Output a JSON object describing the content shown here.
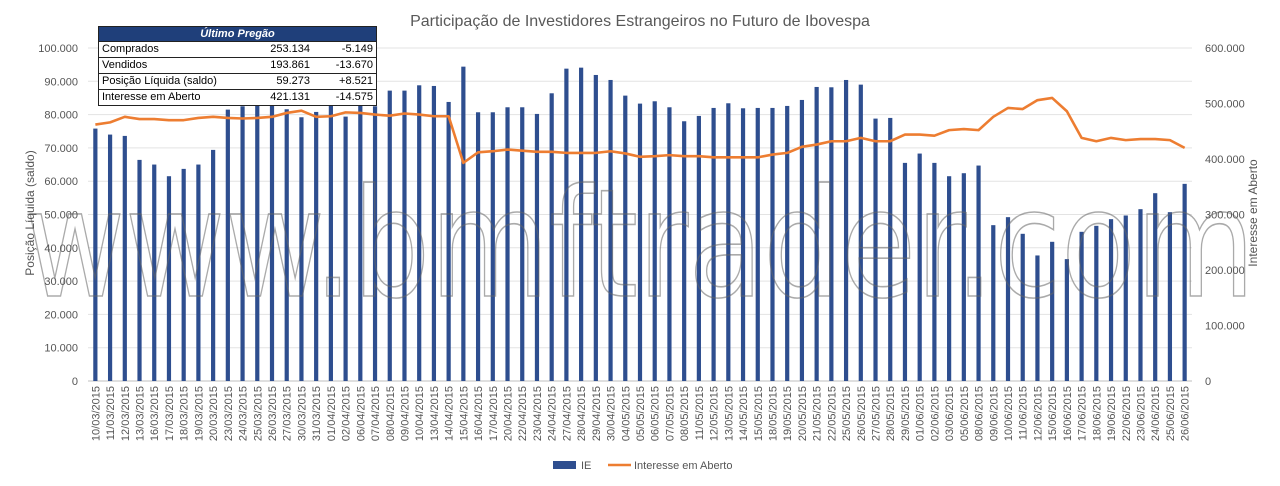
{
  "chart_data": {
    "type": "bar",
    "title": "Participação de Investidores Estrangeiros no Futuro de Ibovespa",
    "ylabel": "Posição Líquida (saldo)",
    "y2label": "Interesse em Aberto",
    "ylim": [
      0,
      100000
    ],
    "y2lim": [
      0,
      600000
    ],
    "yticks": [
      "0",
      "10.000",
      "20.000",
      "30.000",
      "40.000",
      "50.000",
      "60.000",
      "70.000",
      "80.000",
      "90.000",
      "100.000"
    ],
    "y2ticks": [
      "0",
      "100.000",
      "200.000",
      "300.000",
      "400.000",
      "500.000",
      "600.000"
    ],
    "legend_position": "bottom",
    "categories": [
      "10/03/2015",
      "11/03/2015",
      "12/03/2015",
      "13/03/2015",
      "16/03/2015",
      "17/03/2015",
      "18/03/2015",
      "19/03/2015",
      "20/03/2015",
      "23/03/2015",
      "24/03/2015",
      "25/03/2015",
      "26/03/2015",
      "27/03/2015",
      "30/03/2015",
      "31/03/2015",
      "01/04/2015",
      "02/04/2015",
      "06/04/2015",
      "07/04/2015",
      "08/04/2015",
      "09/04/2015",
      "10/04/2015",
      "13/04/2015",
      "14/04/2015",
      "15/04/2015",
      "16/04/2015",
      "17/04/2015",
      "20/04/2015",
      "22/04/2015",
      "23/04/2015",
      "24/04/2015",
      "27/04/2015",
      "28/04/2015",
      "29/04/2015",
      "30/04/2015",
      "04/05/2015",
      "05/05/2015",
      "06/05/2015",
      "07/05/2015",
      "08/05/2015",
      "11/05/2015",
      "12/05/2015",
      "13/05/2015",
      "14/05/2015",
      "15/05/2015",
      "18/05/2015",
      "19/05/2015",
      "20/05/2015",
      "21/05/2015",
      "22/05/2015",
      "25/05/2015",
      "26/05/2015",
      "27/05/2015",
      "28/05/2015",
      "29/05/2015",
      "01/06/2015",
      "02/06/2015",
      "03/06/2015",
      "05/06/2015",
      "08/06/2015",
      "09/06/2015",
      "10/06/2015",
      "11/06/2015",
      "12/06/2015",
      "15/06/2015",
      "16/06/2015",
      "17/06/2015",
      "18/06/2015",
      "19/06/2015",
      "22/06/2015",
      "23/06/2015",
      "24/06/2015",
      "25/06/2015",
      "26/06/2015"
    ],
    "series": [
      {
        "name": "IE",
        "type": "bar",
        "color": "#2e4e8f",
        "axis": "left",
        "values": [
          75800,
          74000,
          73600,
          66400,
          65000,
          61500,
          63700,
          65000,
          69400,
          81500,
          82500,
          83000,
          82700,
          81600,
          79200,
          80800,
          83200,
          79400,
          83800,
          82500,
          87200,
          87200,
          88800,
          88600,
          83800,
          94400,
          80700,
          80700,
          82200,
          82200,
          80200,
          86400,
          93800,
          94100,
          91900,
          90400,
          85700,
          83300,
          84000,
          82200,
          78000,
          79600,
          82000,
          83400,
          81900,
          82000,
          82000,
          82600,
          84400,
          88300,
          88200,
          90400,
          89000,
          78800,
          79000,
          65500,
          68300,
          65500,
          61500,
          62400,
          64700,
          46800,
          49200,
          44200,
          37700,
          41800,
          36600,
          44800,
          46600,
          48600,
          49700,
          51600,
          56400,
          50700,
          59200
        ]
      },
      {
        "name": "Interesse em Aberto",
        "type": "line",
        "color": "#ed7d31",
        "axis": "right",
        "values": [
          462000,
          466000,
          476000,
          472000,
          472000,
          470000,
          470000,
          474000,
          476000,
          474000,
          473000,
          474000,
          476000,
          483000,
          487000,
          476000,
          477000,
          484000,
          483000,
          480000,
          478000,
          482000,
          480000,
          477000,
          477000,
          393000,
          412000,
          414000,
          417000,
          415000,
          413000,
          413000,
          411000,
          411000,
          411000,
          414000,
          410000,
          404000,
          405000,
          407000,
          405000,
          405000,
          403000,
          403000,
          403000,
          403000,
          408000,
          411000,
          422000,
          426000,
          432000,
          432000,
          438000,
          432000,
          432000,
          444000,
          444000,
          442000,
          452000,
          454000,
          452000,
          476000,
          492000,
          490000,
          506000,
          510000,
          486000,
          438000,
          432000,
          438000,
          434000,
          436000,
          436000,
          434000,
          420000
        ]
      }
    ]
  },
  "info_table": {
    "header": "Último Pregão",
    "rows": [
      {
        "label": "Comprados",
        "value": "253.134",
        "change": "-5.149"
      },
      {
        "label": "Vendidos",
        "value": "193.861",
        "change": "-13.670"
      },
      {
        "label": "Posição Líquida (saldo)",
        "value": "59.273",
        "change": "+8.521"
      },
      {
        "label": "Interesse em Aberto",
        "value": "421.131",
        "change": "-14.575"
      }
    ]
  },
  "watermark": "www.bmftrader.com"
}
